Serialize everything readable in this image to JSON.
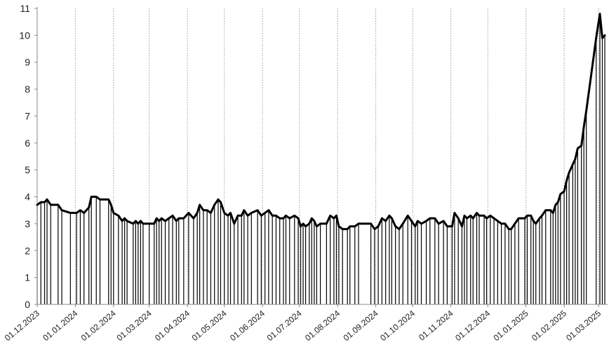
{
  "chart_data": {
    "type": "area",
    "title": "",
    "xlabel": "",
    "ylabel": "",
    "ylim": [
      0,
      11
    ],
    "yticks": [
      "0",
      "1",
      "2",
      "3",
      "4",
      "5",
      "6",
      "7",
      "8",
      "9",
      "10",
      "11"
    ],
    "xlim": [
      "2023-12-01",
      "2025-03-06"
    ],
    "xtick_labels": [
      "01.12.2023",
      "01.01.2024",
      "01.02.2024",
      "01.03.2024",
      "01.04.2024",
      "01.05.2024",
      "01.06.2024",
      "01.07.2024",
      "01.08.2024",
      "01.09.2024",
      "01.10.2024",
      "01.11.2024",
      "01.12.2024",
      "01.01.2025",
      "01.02.2025",
      "01.03.2025"
    ],
    "vertical_gridlines": "dotted at month starts",
    "colors": {
      "line": "#000000",
      "grid": "#999999",
      "axis": "#888888"
    },
    "series": [
      {
        "points": [
          [
            "2023-12-01",
            3.7
          ],
          [
            "2023-12-04",
            3.8
          ],
          [
            "2023-12-07",
            3.8
          ],
          [
            "2023-12-09",
            3.9
          ],
          [
            "2023-12-12",
            3.7
          ],
          [
            "2023-12-18",
            3.7
          ],
          [
            "2023-12-21",
            3.5
          ],
          [
            "2023-12-28",
            3.4
          ],
          [
            "2024-01-02",
            3.4
          ],
          [
            "2024-01-05",
            3.5
          ],
          [
            "2024-01-08",
            3.4
          ],
          [
            "2024-01-12",
            3.6
          ],
          [
            "2024-01-14",
            4.0
          ],
          [
            "2024-01-18",
            4.0
          ],
          [
            "2024-01-21",
            3.9
          ],
          [
            "2024-01-28",
            3.9
          ],
          [
            "2024-01-30",
            3.7
          ],
          [
            "2024-02-01",
            3.4
          ],
          [
            "2024-02-05",
            3.3
          ],
          [
            "2024-02-08",
            3.1
          ],
          [
            "2024-02-10",
            3.2
          ],
          [
            "2024-02-12",
            3.1
          ],
          [
            "2024-02-17",
            3.0
          ],
          [
            "2024-02-19",
            3.1
          ],
          [
            "2024-02-21",
            3.0
          ],
          [
            "2024-02-23",
            3.1
          ],
          [
            "2024-02-25",
            3.0
          ],
          [
            "2024-03-01",
            3.0
          ],
          [
            "2024-03-05",
            3.0
          ],
          [
            "2024-03-07",
            3.2
          ],
          [
            "2024-03-09",
            3.1
          ],
          [
            "2024-03-11",
            3.2
          ],
          [
            "2024-03-14",
            3.1
          ],
          [
            "2024-03-17",
            3.2
          ],
          [
            "2024-03-20",
            3.3
          ],
          [
            "2024-03-23",
            3.1
          ],
          [
            "2024-03-25",
            3.2
          ],
          [
            "2024-03-29",
            3.2
          ],
          [
            "2024-04-02",
            3.4
          ],
          [
            "2024-04-06",
            3.2
          ],
          [
            "2024-04-09",
            3.4
          ],
          [
            "2024-04-11",
            3.7
          ],
          [
            "2024-04-14",
            3.5
          ],
          [
            "2024-04-17",
            3.5
          ],
          [
            "2024-04-20",
            3.4
          ],
          [
            "2024-04-23",
            3.7
          ],
          [
            "2024-04-26",
            3.9
          ],
          [
            "2024-04-28",
            3.8
          ],
          [
            "2024-05-01",
            3.4
          ],
          [
            "2024-05-04",
            3.3
          ],
          [
            "2024-05-06",
            3.4
          ],
          [
            "2024-05-09",
            3.0
          ],
          [
            "2024-05-12",
            3.3
          ],
          [
            "2024-05-15",
            3.3
          ],
          [
            "2024-05-17",
            3.5
          ],
          [
            "2024-05-20",
            3.3
          ],
          [
            "2024-05-23",
            3.4
          ],
          [
            "2024-05-28",
            3.5
          ],
          [
            "2024-05-31",
            3.3
          ],
          [
            "2024-06-03",
            3.4
          ],
          [
            "2024-06-06",
            3.5
          ],
          [
            "2024-06-09",
            3.3
          ],
          [
            "2024-06-12",
            3.3
          ],
          [
            "2024-06-15",
            3.2
          ],
          [
            "2024-06-18",
            3.2
          ],
          [
            "2024-06-20",
            3.3
          ],
          [
            "2024-06-23",
            3.2
          ],
          [
            "2024-06-27",
            3.3
          ],
          [
            "2024-06-30",
            3.2
          ],
          [
            "2024-07-02",
            2.9
          ],
          [
            "2024-07-04",
            3.0
          ],
          [
            "2024-07-06",
            2.9
          ],
          [
            "2024-07-09",
            3.0
          ],
          [
            "2024-07-11",
            3.2
          ],
          [
            "2024-07-13",
            3.1
          ],
          [
            "2024-07-15",
            2.9
          ],
          [
            "2024-07-18",
            3.0
          ],
          [
            "2024-07-23",
            3.0
          ],
          [
            "2024-07-26",
            3.3
          ],
          [
            "2024-07-29",
            3.2
          ],
          [
            "2024-07-31",
            3.3
          ],
          [
            "2024-08-02",
            2.9
          ],
          [
            "2024-08-05",
            2.8
          ],
          [
            "2024-08-09",
            2.8
          ],
          [
            "2024-08-11",
            2.9
          ],
          [
            "2024-08-15",
            2.9
          ],
          [
            "2024-08-18",
            3.0
          ],
          [
            "2024-08-28",
            3.0
          ],
          [
            "2024-08-31",
            2.8
          ],
          [
            "2024-09-03",
            2.9
          ],
          [
            "2024-09-06",
            3.2
          ],
          [
            "2024-09-09",
            3.1
          ],
          [
            "2024-09-12",
            3.3
          ],
          [
            "2024-09-14",
            3.2
          ],
          [
            "2024-09-17",
            2.9
          ],
          [
            "2024-09-20",
            2.8
          ],
          [
            "2024-09-23",
            3.0
          ],
          [
            "2024-09-27",
            3.3
          ],
          [
            "2024-09-30",
            3.1
          ],
          [
            "2024-10-03",
            2.9
          ],
          [
            "2024-10-05",
            3.1
          ],
          [
            "2024-10-08",
            3.0
          ],
          [
            "2024-10-12",
            3.1
          ],
          [
            "2024-10-15",
            3.2
          ],
          [
            "2024-10-19",
            3.2
          ],
          [
            "2024-10-22",
            3.0
          ],
          [
            "2024-10-26",
            3.1
          ],
          [
            "2024-10-29",
            2.9
          ],
          [
            "2024-11-02",
            2.9
          ],
          [
            "2024-11-04",
            3.4
          ],
          [
            "2024-11-07",
            3.2
          ],
          [
            "2024-11-10",
            2.9
          ],
          [
            "2024-11-12",
            3.3
          ],
          [
            "2024-11-14",
            3.2
          ],
          [
            "2024-11-17",
            3.3
          ],
          [
            "2024-11-19",
            3.2
          ],
          [
            "2024-11-22",
            3.4
          ],
          [
            "2024-11-24",
            3.3
          ],
          [
            "2024-11-28",
            3.3
          ],
          [
            "2024-11-30",
            3.2
          ],
          [
            "2024-12-03",
            3.3
          ],
          [
            "2024-12-06",
            3.2
          ],
          [
            "2024-12-09",
            3.1
          ],
          [
            "2024-12-12",
            3.0
          ],
          [
            "2024-12-15",
            3.0
          ],
          [
            "2024-12-18",
            2.8
          ],
          [
            "2024-12-20",
            2.8
          ],
          [
            "2024-12-23",
            3.0
          ],
          [
            "2024-12-26",
            3.2
          ],
          [
            "2024-12-31",
            3.2
          ],
          [
            "2025-01-02",
            3.3
          ],
          [
            "2025-01-05",
            3.3
          ],
          [
            "2025-01-07",
            3.1
          ],
          [
            "2025-01-09",
            3.0
          ],
          [
            "2025-01-12",
            3.2
          ],
          [
            "2025-01-14",
            3.3
          ],
          [
            "2025-01-17",
            3.5
          ],
          [
            "2025-01-21",
            3.5
          ],
          [
            "2025-01-23",
            3.4
          ],
          [
            "2025-01-25",
            3.7
          ],
          [
            "2025-01-27",
            3.8
          ],
          [
            "2025-01-29",
            4.1
          ],
          [
            "2025-02-01",
            4.2
          ],
          [
            "2025-02-03",
            4.6
          ],
          [
            "2025-02-05",
            4.9
          ],
          [
            "2025-02-08",
            5.2
          ],
          [
            "2025-02-10",
            5.4
          ],
          [
            "2025-02-12",
            5.8
          ],
          [
            "2025-02-15",
            5.9
          ],
          [
            "2025-02-17",
            6.6
          ],
          [
            "2025-02-19",
            7.2
          ],
          [
            "2025-02-27",
            9.9
          ],
          [
            "2025-03-02",
            10.8
          ],
          [
            "2025-03-04",
            9.9
          ],
          [
            "2025-03-06",
            10.0
          ]
        ]
      }
    ]
  }
}
